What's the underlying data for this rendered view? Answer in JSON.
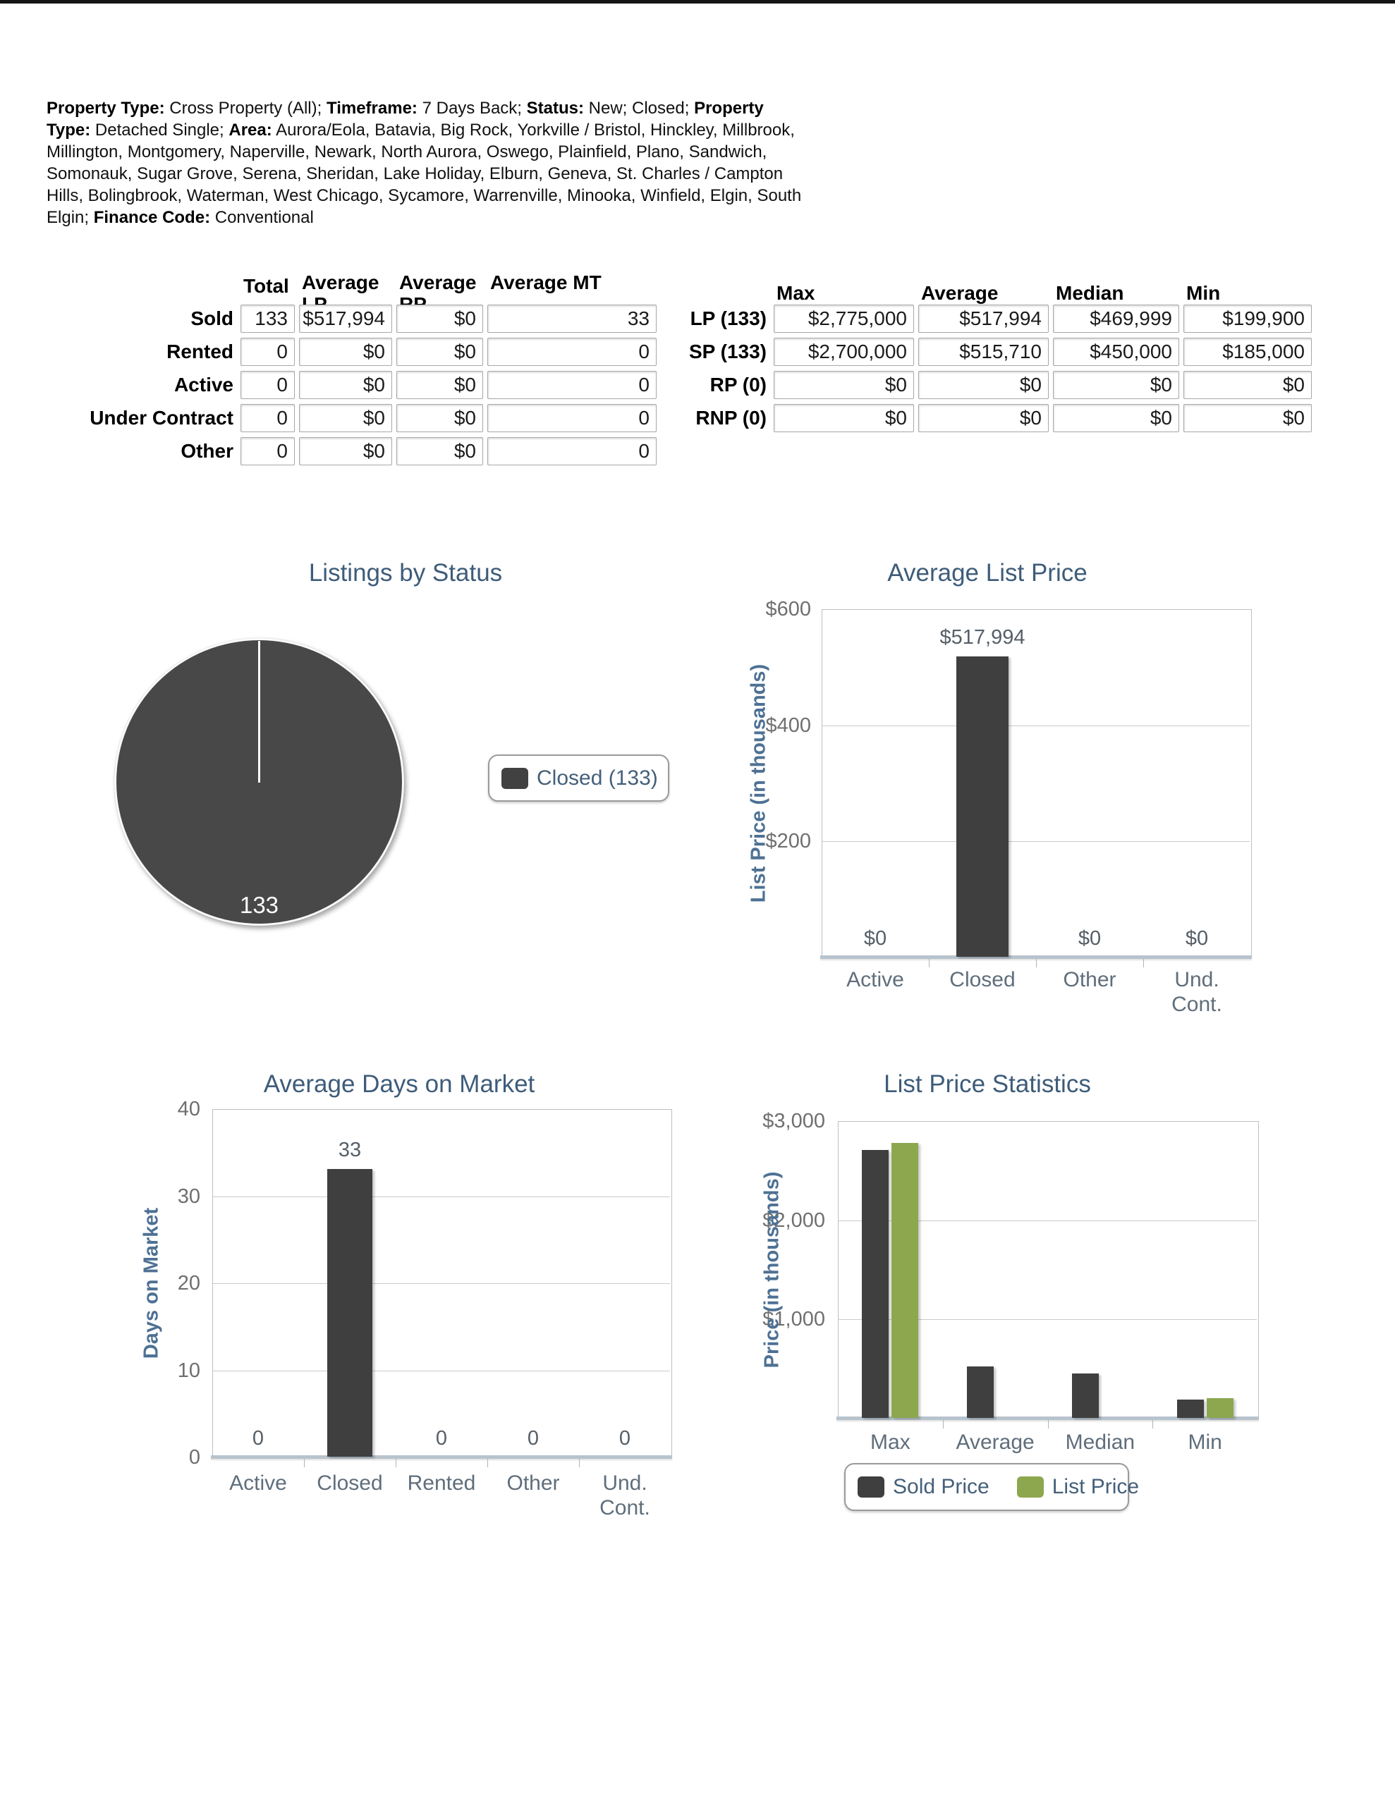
{
  "header": {
    "segments": [
      {
        "b": "Property Type:",
        "t": " Cross Property (All); "
      },
      {
        "b": "Timeframe:",
        "t": " 7 Days Back; "
      },
      {
        "b": "Status:",
        "t": " New; Closed; "
      },
      {
        "b": "Property Type:",
        "t": " Detached Single; "
      },
      {
        "b": "Area:",
        "t": " Aurora/Eola, Batavia, Big Rock, Yorkville / Bristol, Hinckley, Millbrook, Millington, Montgomery, Naperville, Newark, North Aurora, Oswego, Plainfield, Plano, Sandwich, Somonauk, Sugar Grove, Serena, Sheridan, Lake Holiday, Elburn, Geneva, St. Charles / Campton Hills, Bolingbrook, Waterman, West Chicago, Sycamore, Warrenville, Minooka, Winfield, Elgin, South Elgin; "
      },
      {
        "b": "Finance Code:",
        "t": " Conventional"
      }
    ]
  },
  "summary_table": {
    "columns": [
      "Total",
      "Average LP",
      "Average RP",
      "Average MT"
    ],
    "rows": [
      {
        "label": "Sold",
        "values": [
          "133",
          "$517,994",
          "$0",
          "33"
        ]
      },
      {
        "label": "Rented",
        "values": [
          "0",
          "$0",
          "$0",
          "0"
        ]
      },
      {
        "label": "Active",
        "values": [
          "0",
          "$0",
          "$0",
          "0"
        ]
      },
      {
        "label": "Under Contract",
        "values": [
          "0",
          "$0",
          "$0",
          "0"
        ]
      },
      {
        "label": "Other",
        "values": [
          "0",
          "$0",
          "$0",
          "0"
        ]
      }
    ]
  },
  "price_table": {
    "columns": [
      "Max",
      "Average",
      "Median",
      "Min"
    ],
    "rows": [
      {
        "label": "LP (133)",
        "values": [
          "$2,775,000",
          "$517,994",
          "$469,999",
          "$199,900"
        ]
      },
      {
        "label": "SP (133)",
        "values": [
          "$2,700,000",
          "$515,710",
          "$450,000",
          "$185,000"
        ]
      },
      {
        "label": "RP (0)",
        "values": [
          "$0",
          "$0",
          "$0",
          "$0"
        ]
      },
      {
        "label": "RNP (0)",
        "values": [
          "$0",
          "$0",
          "$0",
          "$0"
        ]
      }
    ]
  },
  "colors": {
    "bar_dark": "#3f3f3f",
    "bar_green": "#8da74f",
    "pie_fill": "#484848",
    "title": "#3e5c7a",
    "axis_label": "#4e7194",
    "tick_label": "#6f6f6f",
    "category_label": "#5f6e7b",
    "data_label": "#565f68",
    "legend_text": "#44607a"
  },
  "chart_data": [
    {
      "id": "listings-by-status",
      "type": "pie",
      "title": "Listings by Status",
      "slices": [
        {
          "label": "Closed",
          "value": 133,
          "color": "#484848"
        }
      ],
      "total_label": "133",
      "legend": [
        {
          "label": "Closed (133)",
          "color": "#414141"
        }
      ],
      "legend_position": "right"
    },
    {
      "id": "average-list-price",
      "type": "bar",
      "title": "Average List Price",
      "ylabel": "List Price (in thousands)",
      "categories": [
        "Active",
        "Closed",
        "Other",
        "Und.\nCont."
      ],
      "values": [
        0,
        517.994,
        0,
        0
      ],
      "bar_labels": [
        "$0",
        "$517,994",
        "$0",
        "$0"
      ],
      "ylim": [
        0,
        600
      ],
      "yticks": [
        {
          "label": "$600",
          "value": 600
        },
        {
          "label": "$400",
          "value": 400
        },
        {
          "label": "$200",
          "value": 200
        }
      ],
      "grid": true,
      "bar_color": "#3f3f3f",
      "legend_position": "none"
    },
    {
      "id": "average-days-on-market",
      "type": "bar",
      "title": "Average Days on Market",
      "ylabel": "Days on Market",
      "categories": [
        "Active",
        "Closed",
        "Rented",
        "Other",
        "Und.\nCont."
      ],
      "values": [
        0,
        33,
        0,
        0,
        0
      ],
      "bar_labels": [
        "0",
        "33",
        "0",
        "0",
        "0"
      ],
      "ylim": [
        0,
        40
      ],
      "yticks": [
        {
          "label": "40",
          "value": 40
        },
        {
          "label": "30",
          "value": 30
        },
        {
          "label": "20",
          "value": 20
        },
        {
          "label": "10",
          "value": 10
        },
        {
          "label": "0",
          "value": 0
        }
      ],
      "grid": true,
      "bar_color": "#3f3f3f",
      "legend_position": "none"
    },
    {
      "id": "list-price-statistics",
      "type": "bar",
      "title": "List Price Statistics",
      "ylabel": "Price (in thousands)",
      "categories": [
        "Max",
        "Average",
        "Median",
        "Min"
      ],
      "series": [
        {
          "name": "Sold Price",
          "color": "#3f3f3f",
          "values": [
            2700,
            515.71,
            450,
            185
          ]
        },
        {
          "name": "List Price",
          "color": "#8da74f",
          "values": [
            2775,
            null,
            null,
            199.9
          ]
        }
      ],
      "ylim": [
        0,
        3000
      ],
      "yticks": [
        {
          "label": "$3,000",
          "value": 3000
        },
        {
          "label": "$2,000",
          "value": 2000
        },
        {
          "label": "$1,000",
          "value": 1000
        }
      ],
      "grid": true,
      "legend_position": "bottom",
      "legend": [
        {
          "label": "Sold Price",
          "color": "#3f3f3f"
        },
        {
          "label": "List Price",
          "color": "#8da74f"
        }
      ]
    }
  ]
}
